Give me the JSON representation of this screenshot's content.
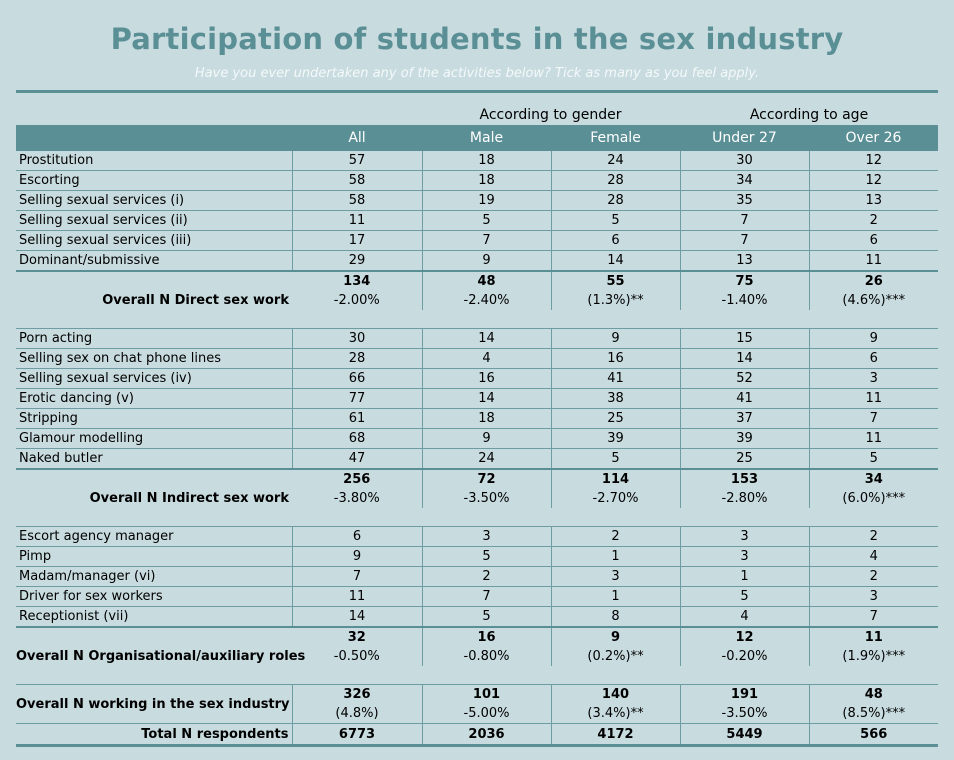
{
  "chart_data": {
    "type": "table",
    "title": "Participation of students in the sex industry",
    "subtitle": "Have you ever undertaken any of the activities below? Tick as many as you feel apply.",
    "column_groups": [
      {
        "label": "According to gender"
      },
      {
        "label": "According to age"
      }
    ],
    "columns": [
      "",
      "All",
      "Male",
      "Female",
      "Under 27",
      "Over 26"
    ],
    "sections": [
      {
        "rows": [
          {
            "label": "Prostitution",
            "values": [
              "57",
              "18",
              "24",
              "30",
              "12"
            ]
          },
          {
            "label": "Escorting",
            "values": [
              "58",
              "18",
              "28",
              "34",
              "12"
            ]
          },
          {
            "label": "Selling sexual services (i)",
            "values": [
              "58",
              "19",
              "28",
              "35",
              "13"
            ]
          },
          {
            "label": "Selling sexual services (ii)",
            "values": [
              "11",
              "5",
              "5",
              "7",
              "2"
            ]
          },
          {
            "label": "Selling sexual services (iii)",
            "values": [
              "17",
              "7",
              "6",
              "7",
              "6"
            ]
          },
          {
            "label": "Dominant/submissive",
            "values": [
              "29",
              "9",
              "14",
              "13",
              "11"
            ]
          }
        ],
        "summary_label": "Overall N Direct sex work",
        "summary_counts": [
          "134",
          "48",
          "55",
          "75",
          "26"
        ],
        "summary_pcts": [
          "-2.00%",
          "-2.40%",
          "(1.3%)**",
          "-1.40%",
          "(4.6%)***"
        ]
      },
      {
        "rows": [
          {
            "label": "Porn acting",
            "values": [
              "30",
              "14",
              "9",
              "15",
              "9"
            ]
          },
          {
            "label": "Selling sex on chat phone lines",
            "values": [
              "28",
              "4",
              "16",
              "14",
              "6"
            ]
          },
          {
            "label": "Selling sexual services (iv)",
            "values": [
              "66",
              "16",
              "41",
              "52",
              "3"
            ]
          },
          {
            "label": "Erotic dancing (v)",
            "values": [
              "77",
              "14",
              "38",
              "41",
              "11"
            ]
          },
          {
            "label": "Stripping",
            "values": [
              "61",
              "18",
              "25",
              "37",
              "7"
            ]
          },
          {
            "label": "Glamour modelling",
            "values": [
              "68",
              "9",
              "39",
              "39",
              "11"
            ]
          },
          {
            "label": "Naked butler",
            "values": [
              "47",
              "24",
              "5",
              "25",
              "5"
            ]
          }
        ],
        "summary_label": "Overall N Indirect sex work",
        "summary_counts": [
          "256",
          "72",
          "114",
          "153",
          "34"
        ],
        "summary_pcts": [
          "-3.80%",
          "-3.50%",
          "-2.70%",
          "-2.80%",
          "(6.0%)***"
        ]
      },
      {
        "rows": [
          {
            "label": "Escort agency manager",
            "values": [
              "6",
              "3",
              "2",
              "3",
              "2"
            ]
          },
          {
            "label": "Pimp",
            "values": [
              "9",
              "5",
              "1",
              "3",
              "4"
            ]
          },
          {
            "label": "Madam/manager (vi)",
            "values": [
              "7",
              "2",
              "3",
              "1",
              "2"
            ]
          },
          {
            "label": "Driver for sex workers",
            "values": [
              "11",
              "7",
              "1",
              "5",
              "3"
            ]
          },
          {
            "label": "Receptionist (vii)",
            "values": [
              "14",
              "5",
              "8",
              "4",
              "7"
            ]
          }
        ],
        "summary_label": "Overall N Organisational/auxiliary roles",
        "summary_counts": [
          "32",
          "16",
          "9",
          "12",
          "11"
        ],
        "summary_pcts": [
          "-0.50%",
          "-0.80%",
          "(0.2%)**",
          "-0.20%",
          "(1.9%)***"
        ]
      }
    ],
    "overall": {
      "label": "Overall N working in the sex industry",
      "counts": [
        "326",
        "101",
        "140",
        "191",
        "48"
      ],
      "pcts": [
        "(4.8%)",
        "-5.00%",
        "(3.4%)**",
        "-3.50%",
        "(8.5%)***"
      ]
    },
    "total": {
      "label": "Total N respondents",
      "values": [
        "6773",
        "2036",
        "4172",
        "5449",
        "566"
      ]
    }
  },
  "colors": {
    "background": "#c8dbdf",
    "accent": "#5b8f96",
    "header_text": "#ffffff",
    "subtitle": "#f4f9fa"
  }
}
